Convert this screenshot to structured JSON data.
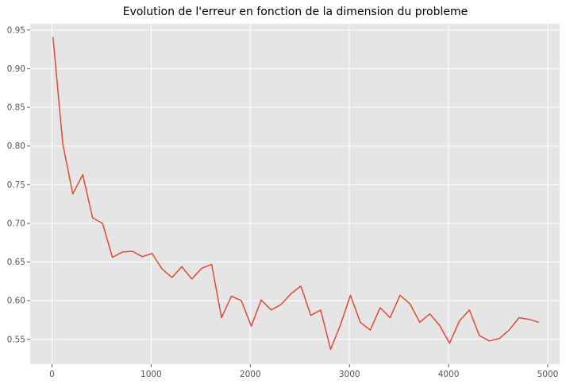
{
  "chart_data": {
    "type": "line",
    "title": "Evolution de l'erreur en fonction de la dimension du probleme",
    "xlabel": "",
    "ylabel": "",
    "xlim": [
      -220,
      5120
    ],
    "ylim": [
      0.518,
      0.958
    ],
    "xticks": [
      0,
      1000,
      2000,
      3000,
      4000,
      5000
    ],
    "xtick_labels": [
      "0",
      "1000",
      "2000",
      "3000",
      "4000",
      "5000"
    ],
    "yticks": [
      0.55,
      0.6,
      0.65,
      0.7,
      0.75,
      0.8,
      0.85,
      0.9,
      0.95
    ],
    "ytick_labels": [
      "0.55",
      "0.60",
      "0.65",
      "0.70",
      "0.75",
      "0.80",
      "0.85",
      "0.90",
      "0.95"
    ],
    "grid": true,
    "style": "ggplot",
    "colors": {
      "background": "#e5e5e5",
      "grid": "#ffffff",
      "line": "#e24a33",
      "tick_label": "#555555"
    },
    "series": [
      {
        "x": [
          10,
          110,
          210,
          310,
          410,
          510,
          610,
          710,
          810,
          910,
          1010,
          1110,
          1210,
          1310,
          1410,
          1510,
          1610,
          1710,
          1810,
          1910,
          2010,
          2110,
          2210,
          2310,
          2410,
          2510,
          2610,
          2710,
          2810,
          2910,
          3010,
          3110,
          3210,
          3310,
          3410,
          3510,
          3610,
          3710,
          3810,
          3910,
          4010,
          4110,
          4210,
          4310,
          4410,
          4510,
          4610,
          4710,
          4810,
          4910
        ],
        "y": [
          0.941,
          0.802,
          0.738,
          0.763,
          0.707,
          0.7,
          0.656,
          0.663,
          0.664,
          0.657,
          0.661,
          0.641,
          0.63,
          0.644,
          0.628,
          0.642,
          0.647,
          0.578,
          0.606,
          0.6,
          0.567,
          0.601,
          0.588,
          0.595,
          0.609,
          0.619,
          0.581,
          0.588,
          0.537,
          0.569,
          0.607,
          0.572,
          0.562,
          0.591,
          0.578,
          0.607,
          0.596,
          0.572,
          0.583,
          0.568,
          0.545,
          0.574,
          0.588,
          0.555,
          0.548,
          0.551,
          0.562,
          0.578,
          0.576,
          0.572
        ]
      }
    ]
  }
}
